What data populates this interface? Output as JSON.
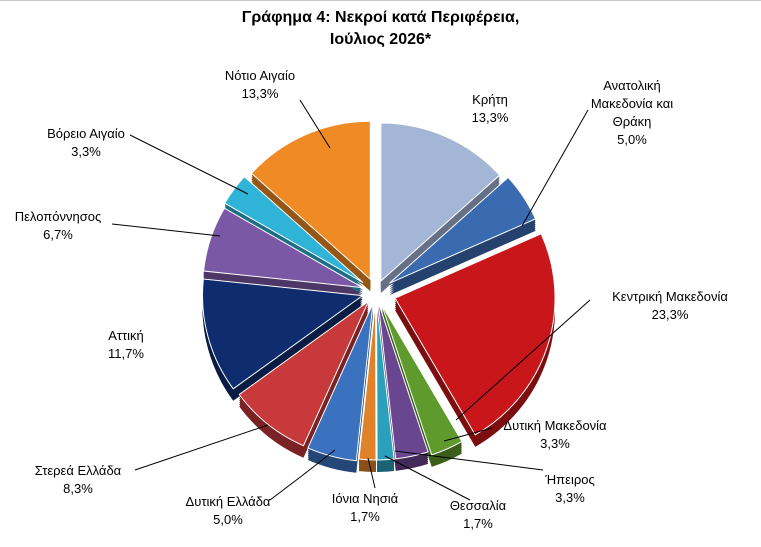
{
  "chart_data": {
    "type": "pie",
    "title_line1": "Γράφημα 4: Νεκροί κατά Περιφέρεια,",
    "title_line2": "Ιούλιος 2026*",
    "slices": [
      {
        "label": [
          "Κρήτη"
        ],
        "value_label": "13,3%",
        "value": 13.3,
        "color": "#a4b6d6"
      },
      {
        "label": [
          "Ανατολική",
          "Μακεδονία και",
          "Θράκη"
        ],
        "value_label": "5,0%",
        "value": 5.0,
        "color": "#3a6bb0"
      },
      {
        "label": [
          "Κεντρική Μακεδονία"
        ],
        "value_label": "23,3%",
        "value": 23.3,
        "color": "#c8161a"
      },
      {
        "label": [
          "Δυτική Μακεδονία"
        ],
        "value_label": "3,3%",
        "value": 3.3,
        "color": "#5f9a2c"
      },
      {
        "label": [
          "Ήπειρος"
        ],
        "value_label": "3,3%",
        "value": 3.3,
        "color": "#6a4690"
      },
      {
        "label": [
          "Θεσσαλία"
        ],
        "value_label": "1,7%",
        "value": 1.7,
        "color": "#2ba0bd"
      },
      {
        "label": [
          "Ιόνια Νησιά"
        ],
        "value_label": "1,7%",
        "value": 1.7,
        "color": "#e0822a"
      },
      {
        "label": [
          "Δυτική Ελλάδα"
        ],
        "value_label": "5,0%",
        "value": 5.0,
        "color": "#3a72bf"
      },
      {
        "label": [
          "Στερεά Ελλάδα"
        ],
        "value_label": "8,3%",
        "value": 8.3,
        "color": "#c7393a"
      },
      {
        "label": [
          "Αττική"
        ],
        "value_label": "11,7%",
        "value": 11.7,
        "color": "#0f2d6e"
      },
      {
        "label": [
          "Πελοπόννησος"
        ],
        "value_label": "6,7%",
        "value": 6.7,
        "color": "#7a58a6"
      },
      {
        "label": [
          "Βόρειο Αιγαίο"
        ],
        "value_label": "3,3%",
        "value": 3.3,
        "color": "#2fb3d6"
      },
      {
        "label": [
          "Νότιο Αιγαίο"
        ],
        "value_label": "13,3%",
        "value": 13.3,
        "color": "#f08a24"
      }
    ]
  }
}
